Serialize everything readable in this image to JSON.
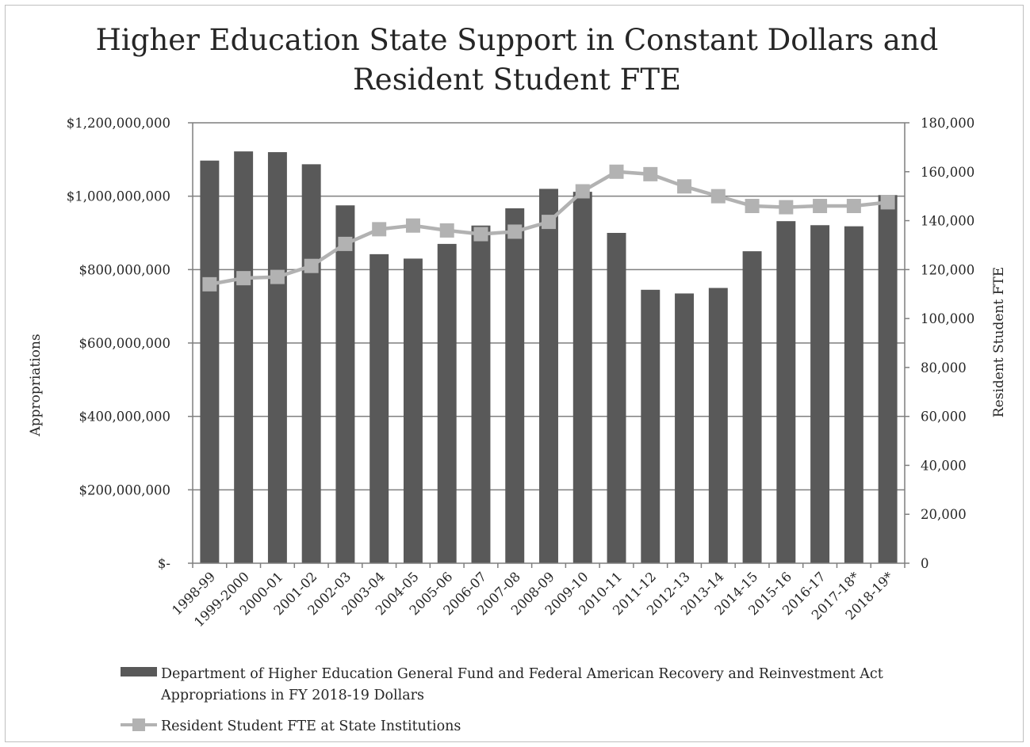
{
  "chart_data": {
    "type": "bar+line",
    "title_lines": [
      "Higher Education State Support in Constant Dollars and",
      "Resident Student FTE"
    ],
    "categories": [
      "1998-99",
      "1999-2000",
      "2000-01",
      "2001-02",
      "2002-03",
      "2003-04",
      "2004-05",
      "2005-06",
      "2006-07",
      "2007-08",
      "2008-09",
      "2009-10",
      "2010-11",
      "2011-12",
      "2012-13",
      "2013-14",
      "2014-15",
      "2015-16",
      "2016-17",
      "2017-18*",
      "2018-19*"
    ],
    "series": [
      {
        "name_lines": [
          "Department of Higher Education General Fund and Federal American Recovery and Reinvestment Act",
          "Appropriations in FY 2018-19 Dollars"
        ],
        "type": "bar",
        "axis": "left",
        "color": "#595959",
        "values": [
          1097000000,
          1122000000,
          1120000000,
          1087000000,
          975000000,
          842000000,
          830000000,
          870000000,
          920000000,
          967000000,
          1020000000,
          1012000000,
          900000000,
          745000000,
          735000000,
          750000000,
          850000000,
          932000000,
          921000000,
          918000000,
          1003000000
        ]
      },
      {
        "name": "Resident Student FTE at State Institutions",
        "type": "line",
        "axis": "right",
        "color": "#b2b2b2",
        "values": [
          114000,
          116500,
          117000,
          121500,
          130500,
          136500,
          138000,
          136000,
          134500,
          135500,
          139500,
          152000,
          160000,
          159000,
          154000,
          150000,
          146000,
          145500,
          146000,
          146000,
          147500
        ]
      }
    ],
    "y_left": {
      "label": "Appropriations",
      "min": 0,
      "max": 1200000000,
      "ticks": [
        0,
        200000000,
        400000000,
        600000000,
        800000000,
        1000000000,
        1200000000
      ],
      "tick_labels": [
        "$-",
        "$200,000,000",
        "$400,000,000",
        "$600,000,000",
        "$800,000,000",
        "$1,000,000,000",
        "$1,200,000,000"
      ]
    },
    "y_right": {
      "label": "Resident Student FTE",
      "min": 0,
      "max": 180000,
      "ticks": [
        0,
        20000,
        40000,
        60000,
        80000,
        100000,
        120000,
        140000,
        160000,
        180000
      ],
      "tick_labels": [
        "0",
        "20,000",
        "40,000",
        "60,000",
        "80,000",
        "100,000",
        "120,000",
        "140,000",
        "160,000",
        "180,000"
      ]
    },
    "grid": true,
    "legend_position": "bottom"
  }
}
